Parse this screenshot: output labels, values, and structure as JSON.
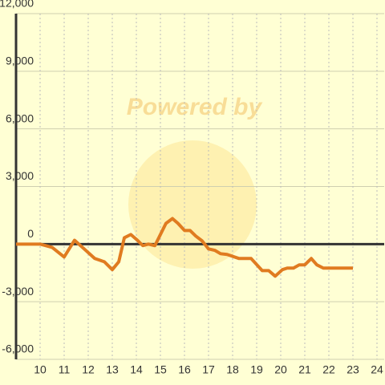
{
  "chart_data": {
    "type": "line",
    "watermark": "Powered by",
    "x": [
      9,
      10,
      10.5,
      11,
      11.43,
      11.83,
      12.27,
      12.67,
      13,
      13.27,
      13.5,
      13.77,
      14,
      14.27,
      14.5,
      14.77,
      15.23,
      15.5,
      15.73,
      16,
      16.23,
      16.47,
      16.73,
      17,
      17.27,
      17.5,
      17.77,
      18.27,
      18.77,
      19.23,
      19.5,
      19.77,
      20.07,
      20.27,
      20.53,
      20.77,
      21,
      21.27,
      21.5,
      21.77,
      23
    ],
    "series": [
      {
        "color": "#e07b20",
        "values": [
          0,
          0,
          -170,
          -670,
          200,
          -250,
          -750,
          -920,
          -1330,
          -920,
          330,
          500,
          250,
          -80,
          0,
          -80,
          1080,
          1330,
          1080,
          710,
          710,
          420,
          170,
          -250,
          -330,
          -500,
          -540,
          -750,
          -750,
          -1380,
          -1380,
          -1670,
          -1330,
          -1250,
          -1250,
          -1080,
          -1080,
          -750,
          -1080,
          -1250,
          -1250
        ]
      }
    ],
    "xlim": [
      9,
      24.3
    ],
    "xticks": [
      10,
      11,
      12,
      13,
      14,
      15,
      16,
      17,
      18,
      19,
      20,
      21,
      22,
      23,
      24
    ],
    "ylim": [
      -6000,
      12000
    ],
    "yticks": [
      {
        "value": -6000,
        "label": "-6,000"
      },
      {
        "value": -3000,
        "label": "-3,000"
      },
      0,
      {
        "value": 3000,
        "label": "3,000"
      },
      {
        "value": 6000,
        "label": "6,000"
      },
      {
        "value": 9000,
        "label": "9,000"
      },
      {
        "value": 12000,
        "label": "12,000"
      }
    ],
    "grid": true
  }
}
